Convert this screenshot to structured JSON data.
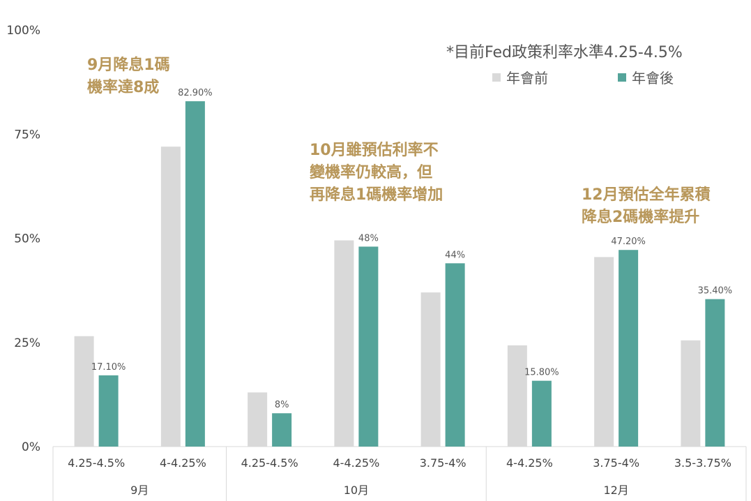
{
  "chart_data": {
    "type": "bar",
    "groups": [
      {
        "label": "9月",
        "categories": [
          "4.25-4.5%",
          "4-4.25%"
        ]
      },
      {
        "label": "10月",
        "categories": [
          "4.25-4.5%",
          "4-4.25%",
          "3.75-4%"
        ]
      },
      {
        "label": "12月",
        "categories": [
          "4-4.25%",
          "3.75-4%",
          "3.5-3.75%"
        ]
      }
    ],
    "categories": [
      "4.25-4.5%",
      "4-4.25%",
      "4.25-4.5%",
      "4-4.25%",
      "3.75-4%",
      "4-4.25%",
      "3.75-4%",
      "3.5-3.75%"
    ],
    "series": [
      {
        "name": "年會前",
        "color": "#D9D9D9",
        "values": [
          26.5,
          72,
          13,
          49.5,
          37,
          24.3,
          45.5,
          25.5
        ],
        "labels": [
          "",
          "",
          "",
          "",
          "",
          "",
          "",
          ""
        ]
      },
      {
        "name": "年會後",
        "color": "#55A49A",
        "values": [
          17.1,
          82.9,
          8,
          48,
          44,
          15.8,
          47.2,
          35.4
        ],
        "labels": [
          "17.10%",
          "82.90%",
          "8%",
          "48%",
          "44%",
          "15.80%",
          "47.20%",
          "35.40%"
        ]
      }
    ],
    "ylim": [
      0,
      100
    ],
    "yticks": [
      {
        "value": 0,
        "label": "0%"
      },
      {
        "value": 25,
        "label": "25%"
      },
      {
        "value": 50,
        "label": "50%"
      },
      {
        "value": 75,
        "label": "75%"
      },
      {
        "value": 100,
        "label": "100%"
      }
    ],
    "grid": false,
    "legend_position": "top-right",
    "note": "*目前Fed政策利率水準4.25-4.5%",
    "annotations": [
      {
        "lines": [
          "9月降息1碼",
          "機率達8成"
        ]
      },
      {
        "lines": [
          "10月雖預估利率不",
          "變機率仍較高，但",
          "再降息1碼機率增加"
        ]
      },
      {
        "lines": [
          "12月預估全年累積",
          "降息2碼機率提升"
        ]
      }
    ],
    "annotation_color": "#B8975A"
  }
}
